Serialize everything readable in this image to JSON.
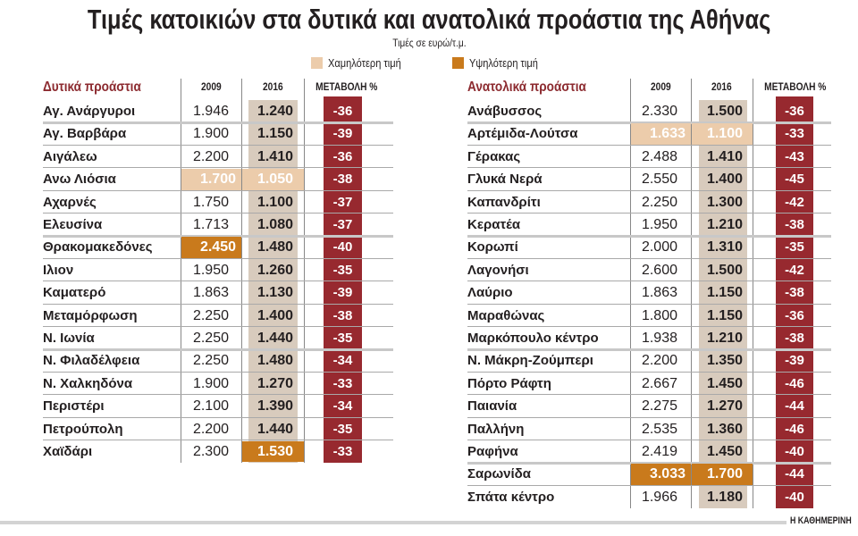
{
  "title": "Τιμές κατοικιών στα  δυτικά και ανατολικά προάστια της Αθήνας",
  "subtitle": "Τιμές σε ευρώ/τ.μ.",
  "legend": [
    {
      "label": "Χαμηλότερη τιμή",
      "color": "#ecccab"
    },
    {
      "label": "Υψηλότερη τιμή",
      "color": "#c97a1c"
    }
  ],
  "colors": {
    "band_2016": "#d8cbbd",
    "change_band": "#97292f",
    "section_title": "#8c2a2f"
  },
  "source": "Η ΚΑΘΗΜΕΡΙΝΗ",
  "chart_data": {
    "type": "table",
    "title": "Τιμές κατοικιών στα  δυτικά και ανατολικά προάστια της Αθήνας",
    "subtitle": "Τιμές σε ευρώ/τ.μ.",
    "tables": [
      {
        "section": "Δυτικά προάστια",
        "columns": [
          "2009",
          "2016",
          "ΜΕΤΑΒΟΛΗ %"
        ],
        "rows": [
          {
            "name": "Αγ. Ανάργυροι",
            "y2009": "1.946",
            "y2016": "1.240",
            "change": "-36"
          },
          {
            "name": "Αγ. Βαρβάρα",
            "y2009": "1.900",
            "y2016": "1.150",
            "change": "-39"
          },
          {
            "name": "Αιγάλεω",
            "y2009": "2.200",
            "y2016": "1.410",
            "change": "-36"
          },
          {
            "name": "Ανω Λιόσια",
            "y2009": "1.700",
            "y2016": "1.050",
            "change": "-38",
            "hl2009": "low",
            "hl2016": "low"
          },
          {
            "name": "Αχαρνές",
            "y2009": "1.750",
            "y2016": "1.100",
            "change": "-37"
          },
          {
            "name": "Ελευσίνα",
            "y2009": "1.713",
            "y2016": "1.080",
            "change": "-37"
          },
          {
            "name": "Θρακομακεδόνες",
            "y2009": "2.450",
            "y2016": "1.480",
            "change": "-40",
            "hl2009": "high"
          },
          {
            "name": "Ιλιον",
            "y2009": "1.950",
            "y2016": "1.260",
            "change": "-35"
          },
          {
            "name": "Καματερό",
            "y2009": "1.863",
            "y2016": "1.130",
            "change": "-39"
          },
          {
            "name": "Μεταμόρφωση",
            "y2009": "2.250",
            "y2016": "1.400",
            "change": "-38"
          },
          {
            "name": "Ν. Ιωνία",
            "y2009": "2.250",
            "y2016": "1.440",
            "change": "-35"
          },
          {
            "name": "Ν. Φιλαδέλφεια",
            "y2009": "2.250",
            "y2016": "1.480",
            "change": "-34"
          },
          {
            "name": "Ν. Χαλκηδόνα",
            "y2009": "1.900",
            "y2016": "1.270",
            "change": "-33"
          },
          {
            "name": "Περιστέρι",
            "y2009": "2.100",
            "y2016": "1.390",
            "change": "-34"
          },
          {
            "name": "Πετρούπολη",
            "y2009": "2.200",
            "y2016": "1.440",
            "change": "-35"
          },
          {
            "name": "Χαϊδάρι",
            "y2009": "2.300",
            "y2016": "1.530",
            "change": "-33",
            "hl2016": "high"
          }
        ]
      },
      {
        "section": "Ανατολικά προάστια",
        "columns": [
          "2009",
          "2016",
          "ΜΕΤΑΒΟΛΗ %"
        ],
        "rows": [
          {
            "name": "Ανάβυσσος",
            "y2009": "2.330",
            "y2016": "1.500",
            "change": "-36"
          },
          {
            "name": "Αρτέμιδα-Λούτσα",
            "y2009": "1.633",
            "y2016": "1.100",
            "change": "-33",
            "hl2009": "low",
            "hl2016": "low"
          },
          {
            "name": "Γέρακας",
            "y2009": "2.488",
            "y2016": "1.410",
            "change": "-43"
          },
          {
            "name": "Γλυκά Νερά",
            "y2009": "2.550",
            "y2016": "1.400",
            "change": "-45"
          },
          {
            "name": "Καπανδρίτι",
            "y2009": "2.250",
            "y2016": "1.300",
            "change": "-42"
          },
          {
            "name": "Κερατέα",
            "y2009": "1.950",
            "y2016": "1.210",
            "change": "-38"
          },
          {
            "name": "Κορωπί",
            "y2009": "2.000",
            "y2016": "1.310",
            "change": "-35"
          },
          {
            "name": "Λαγονήσι",
            "y2009": "2.600",
            "y2016": "1.500",
            "change": "-42"
          },
          {
            "name": "Λαύριο",
            "y2009": "1.863",
            "y2016": "1.150",
            "change": "-38"
          },
          {
            "name": "Μαραθώνας",
            "y2009": "1.800",
            "y2016": "1.150",
            "change": "-36"
          },
          {
            "name": "Μαρκόπουλο κέντρο",
            "y2009": "1.938",
            "y2016": "1.210",
            "change": "-38"
          },
          {
            "name": "Ν. Μάκρη-Ζούμπερι",
            "y2009": "2.200",
            "y2016": "1.350",
            "change": "-39"
          },
          {
            "name": "Πόρτο Ράφτη",
            "y2009": "2.667",
            "y2016": "1.450",
            "change": "-46"
          },
          {
            "name": "Παιανία",
            "y2009": "2.275",
            "y2016": "1.270",
            "change": "-44"
          },
          {
            "name": "Παλλήνη",
            "y2009": "2.535",
            "y2016": "1.360",
            "change": "-46"
          },
          {
            "name": "Ραφήνα",
            "y2009": "2.419",
            "y2016": "1.450",
            "change": "-40"
          },
          {
            "name": "Σαρωνίδα",
            "y2009": "3.033",
            "y2016": "1.700",
            "change": "-44",
            "hl2009": "high",
            "hl2016": "high"
          },
          {
            "name": "Σπάτα κέντρο",
            "y2009": "1.966",
            "y2016": "1.180",
            "change": "-40"
          }
        ]
      }
    ]
  }
}
